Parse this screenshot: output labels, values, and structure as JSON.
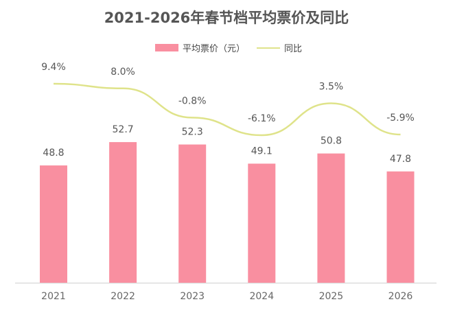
{
  "chart_data": {
    "type": "bar",
    "title": "2021-2026年春节档平均票价及同比",
    "categories": [
      "2021",
      "2022",
      "2023",
      "2024",
      "2025",
      "2026"
    ],
    "series": [
      {
        "name": "平均票价（元）",
        "type": "bar",
        "values": [
          48.8,
          52.7,
          52.3,
          49.1,
          50.8,
          47.8
        ],
        "labels": [
          "48.8",
          "52.7",
          "52.3",
          "49.1",
          "50.8",
          "47.8"
        ],
        "color": "#f98fa0",
        "ylim": [
          29.2,
          60
        ]
      },
      {
        "name": "同比",
        "type": "line",
        "values": [
          9.4,
          8.0,
          -0.8,
          -6.1,
          3.5,
          -5.9
        ],
        "labels": [
          "9.4%",
          "8.0%",
          "-0.8%",
          "-6.1%",
          "3.5%",
          "-5.9%"
        ],
        "color": "#dfe38a",
        "ylim": [
          -20,
          20
        ]
      }
    ],
    "xlabel": "",
    "ylabel": "",
    "grid": false,
    "legend": "top-right"
  }
}
